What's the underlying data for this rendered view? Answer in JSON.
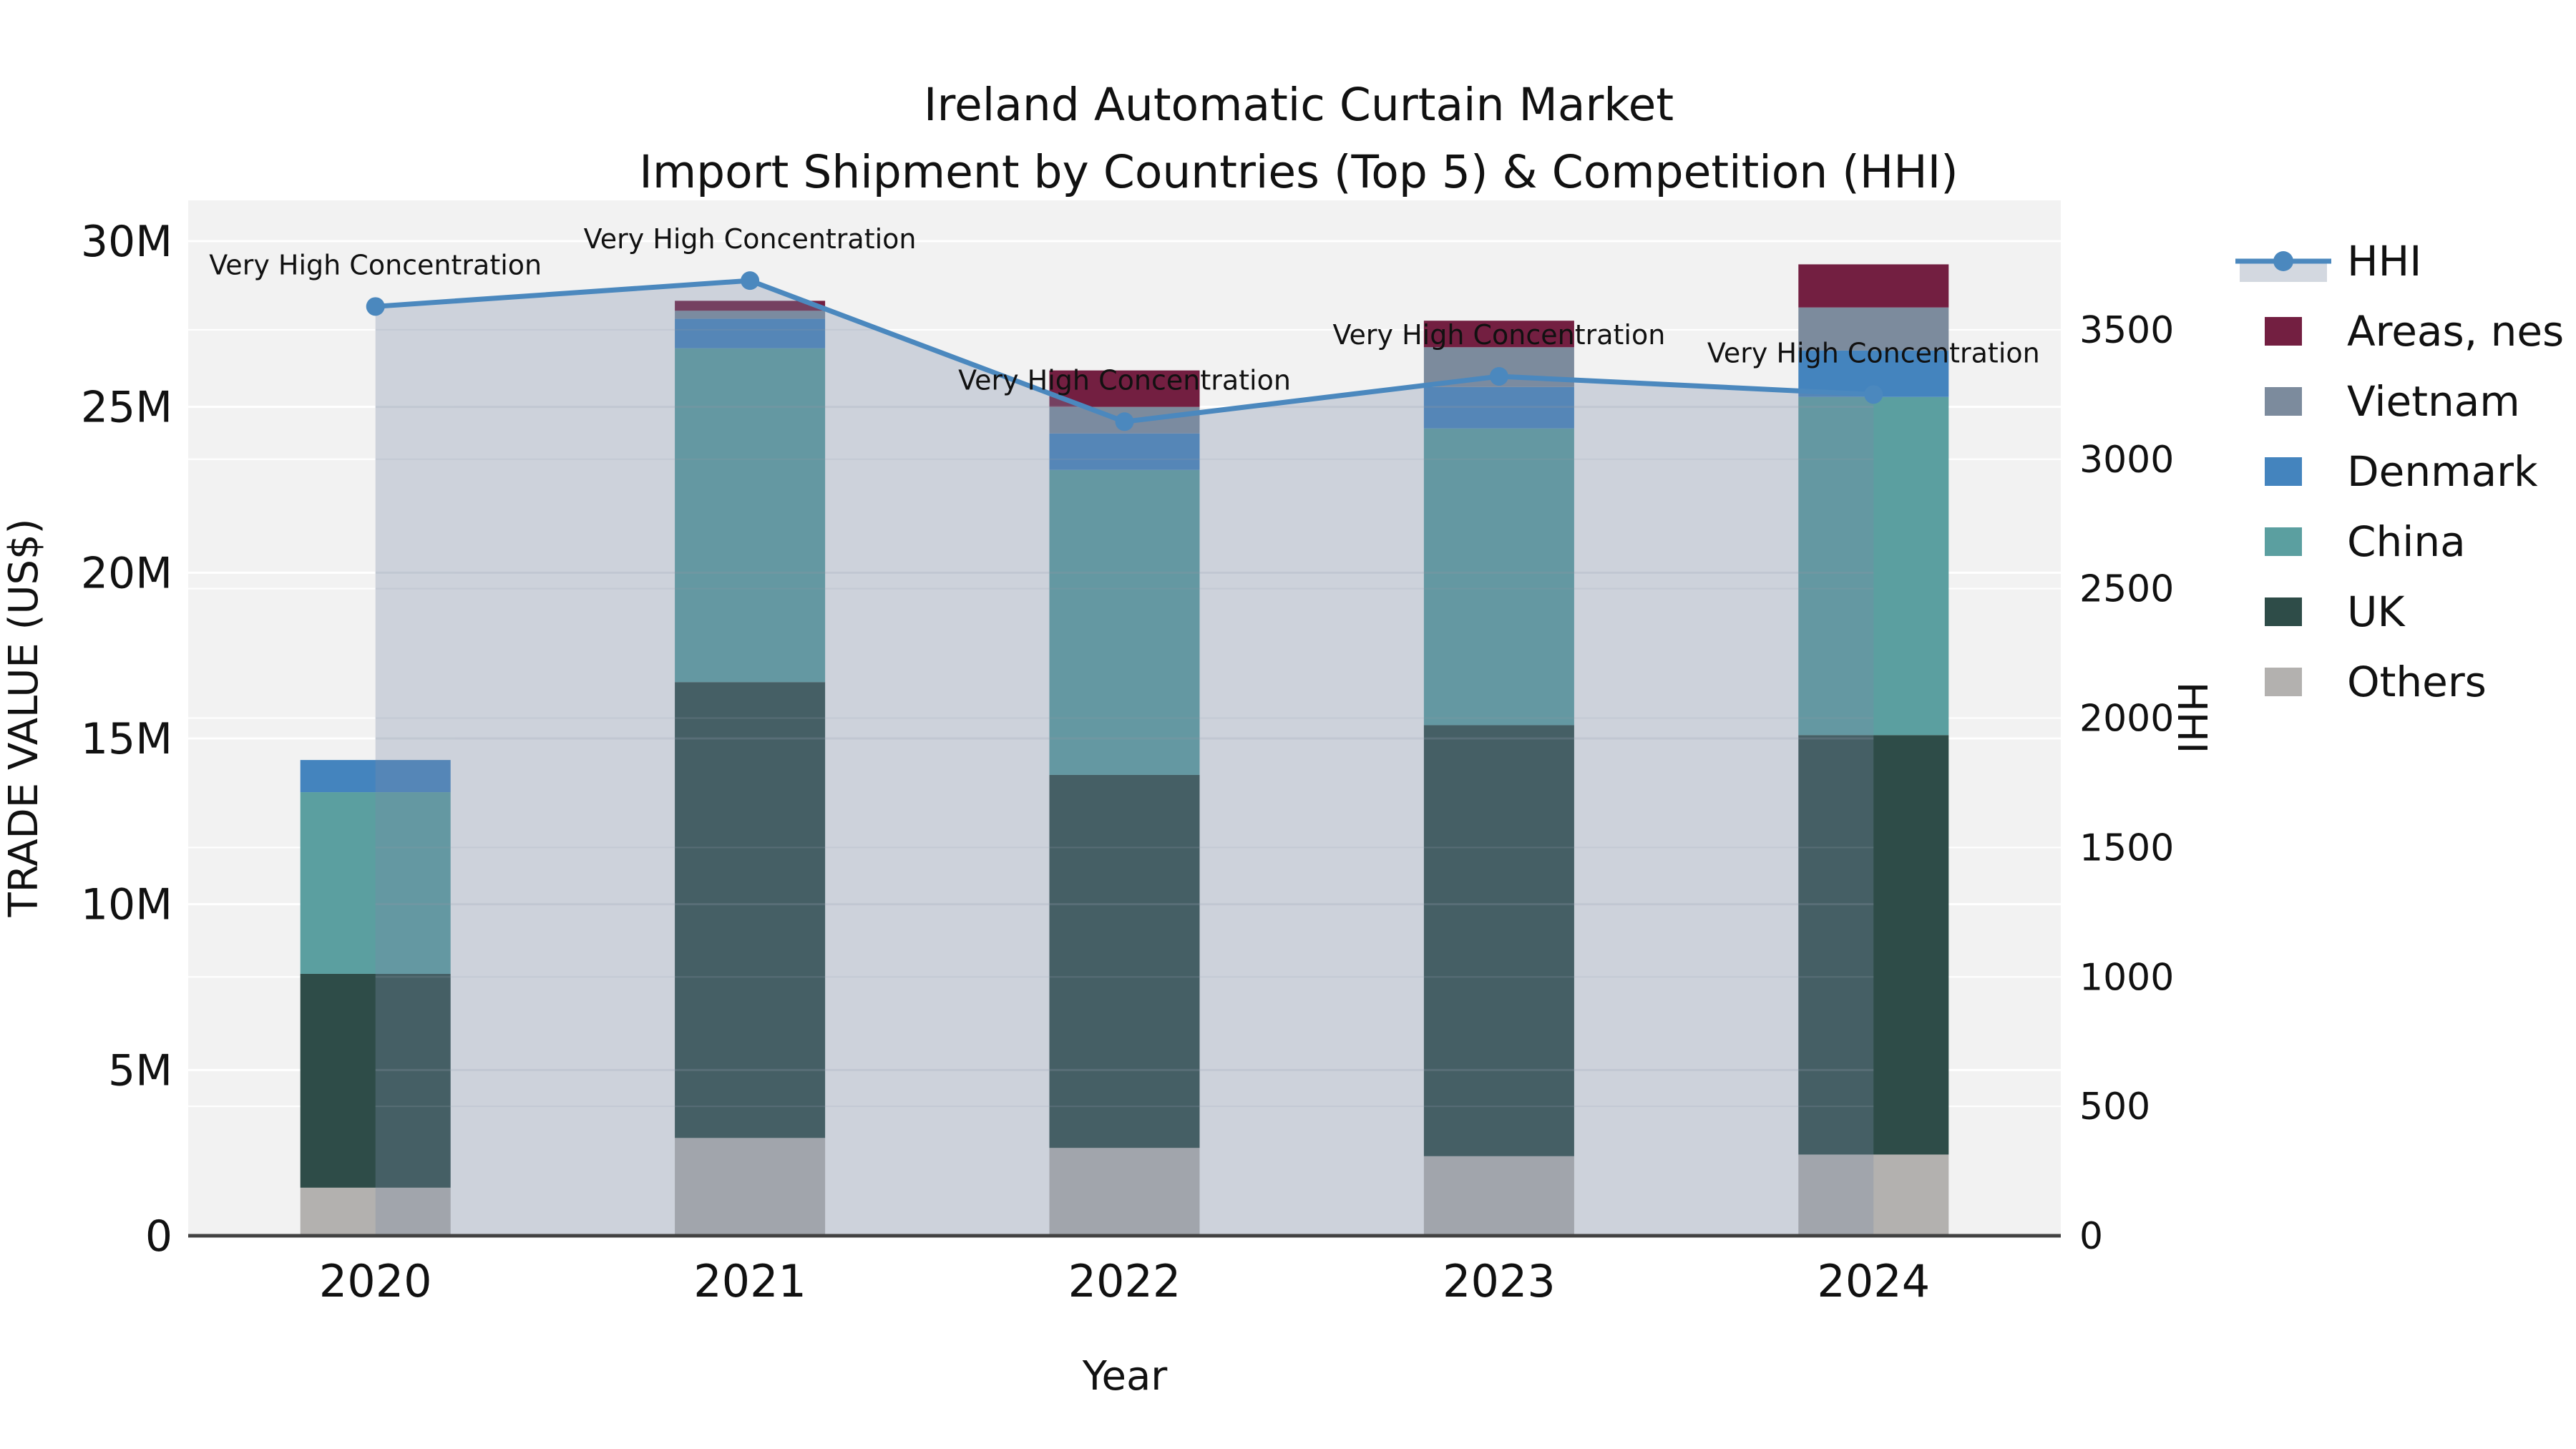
{
  "title": {
    "line1": "Ireland Automatic Curtain Market",
    "line2": "Import Shipment by Countries (Top 5) & Competition (HHI)"
  },
  "chart_data": {
    "type": "bar",
    "subtype": "stacked-bar-with-line",
    "x": {
      "label": "Year",
      "categories": [
        "2020",
        "2021",
        "2022",
        "2023",
        "2024"
      ]
    },
    "y_left": {
      "label": "TRADE VALUE (US$)",
      "unit": "M US$",
      "range": [
        0,
        31.23
      ],
      "tick_values": [
        0,
        5,
        10,
        15,
        20,
        25,
        30
      ],
      "tick_labels": [
        "0",
        "5M",
        "10M",
        "15M",
        "20M",
        "25M",
        "30M"
      ],
      "grid": true
    },
    "y_right": {
      "label": "HHI",
      "range": [
        0,
        4000
      ],
      "tick_values": [
        0,
        500,
        1000,
        1500,
        2000,
        2500,
        3000,
        3500
      ],
      "tick_labels": [
        "0",
        "500",
        "1000",
        "1500",
        "2000",
        "2500",
        "3000",
        "3500"
      ],
      "grid": true
    },
    "series": [
      {
        "name": "Others",
        "color": "#b3b1af",
        "values": [
          1.45,
          2.95,
          2.65,
          2.4,
          2.45
        ]
      },
      {
        "name": "UK",
        "color": "#2e4c48",
        "values": [
          6.45,
          13.75,
          11.25,
          13.0,
          12.65
        ]
      },
      {
        "name": "China",
        "color": "#5b9fa0",
        "values": [
          5.48,
          10.07,
          9.2,
          8.95,
          10.2
        ]
      },
      {
        "name": "Denmark",
        "color": "#4484be",
        "values": [
          0.97,
          0.89,
          1.1,
          1.25,
          1.4
        ]
      },
      {
        "name": "Vietnam",
        "color": "#7c8b9d",
        "values": [
          0.0,
          0.24,
          0.8,
          1.2,
          1.3
        ]
      },
      {
        "name": "Areas, nes",
        "color": "#731f41",
        "values": [
          0.0,
          0.3,
          1.1,
          0.8,
          1.3
        ]
      }
    ],
    "line_series": {
      "name": "HHI",
      "axis": "right",
      "line_color": "#4b88be",
      "fill_color": "rgba(122,138,167,0.31)",
      "values": [
        3590,
        3690,
        3145,
        3320,
        3250
      ]
    },
    "annotations": [
      {
        "text": "Very High Concentration",
        "x_index": 0
      },
      {
        "text": "Very High Concentration",
        "x_index": 1
      },
      {
        "text": "Very High Concentration",
        "x_index": 2
      },
      {
        "text": "Very High Concentration",
        "x_index": 3
      },
      {
        "text": "Very High Concentration",
        "x_index": 4
      }
    ],
    "legend": {
      "position": "right-top-outside",
      "items": [
        {
          "label": "HHI",
          "type": "line",
          "color": "#4b88be"
        },
        {
          "label": "Areas, nes",
          "type": "swatch",
          "color": "#731f41"
        },
        {
          "label": "Vietnam",
          "type": "swatch",
          "color": "#7c8b9d"
        },
        {
          "label": "Denmark",
          "type": "swatch",
          "color": "#4484be"
        },
        {
          "label": "China",
          "type": "swatch",
          "color": "#5b9fa0"
        },
        {
          "label": "UK",
          "type": "swatch",
          "color": "#2e4c48"
        },
        {
          "label": "Others",
          "type": "swatch",
          "color": "#b3b1af"
        }
      ]
    },
    "style": {
      "plot_bg": "#f2f2f2",
      "grid_color": "#ffffff",
      "grid_in_fill_color": "#8c96a5",
      "axis_line_color": "#424242",
      "text_color": "#111111",
      "annotation_color": "#1b1b1b"
    }
  }
}
